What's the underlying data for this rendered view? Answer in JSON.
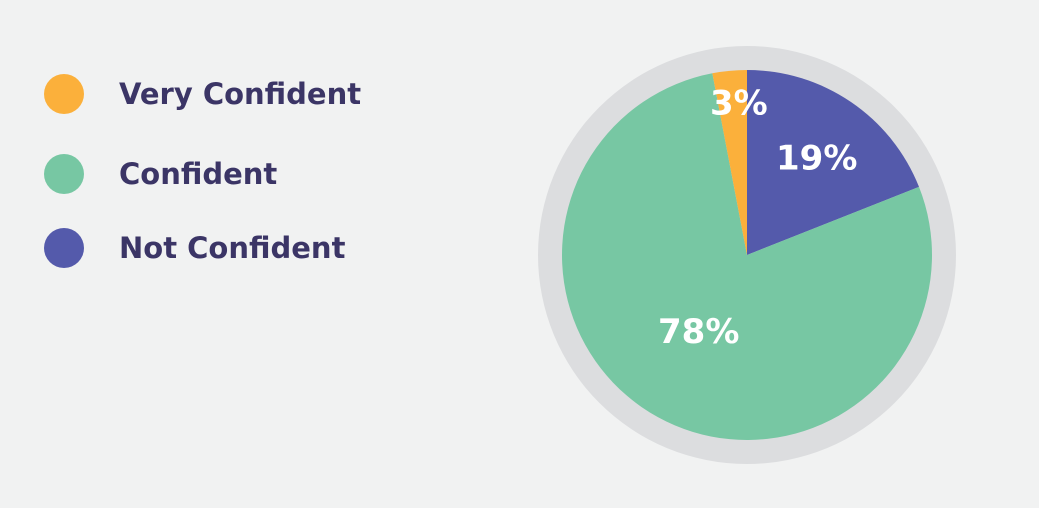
{
  "chart_data": {
    "type": "pie",
    "title": "",
    "categories": [
      "Very Confident",
      "Confident",
      "Not Confident"
    ],
    "values": [
      3,
      78,
      19
    ],
    "labels": [
      "3%",
      "78%",
      "19%"
    ],
    "colors": [
      "#fbb03b",
      "#77c7a3",
      "#545aab"
    ],
    "legend": "left"
  },
  "legend": {
    "items": [
      {
        "label": "Very Confident",
        "color": "#fbb03b"
      },
      {
        "label": "Confident",
        "color": "#77c7a3"
      },
      {
        "label": "Not Confident",
        "color": "#545aab"
      }
    ]
  },
  "colors": {
    "background": "#f1f2f2",
    "ring": "#dcdddf",
    "legend_text": "#3b3566",
    "slice_label": "#ffffff"
  }
}
